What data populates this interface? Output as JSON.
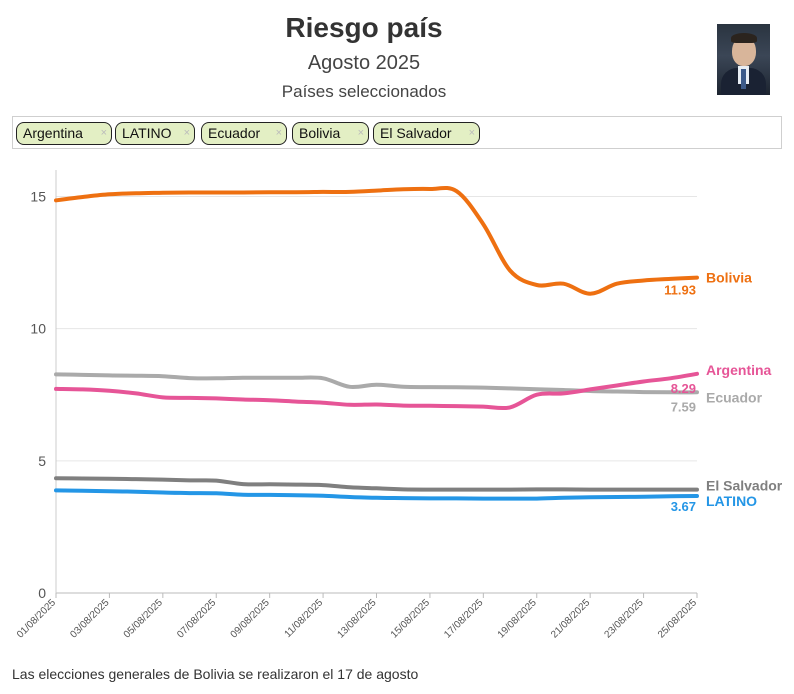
{
  "header": {
    "title": "Riesgo país",
    "subtitle": "Agosto 2025",
    "subsubtitle": "Países seleccionados"
  },
  "filters": {
    "chips": [
      {
        "label": "Argentina",
        "remove": "×"
      },
      {
        "label": "LATINO",
        "remove": "×"
      },
      {
        "label": "Ecuador",
        "remove": "×"
      },
      {
        "label": "Bolivia",
        "remove": "×"
      },
      {
        "label": "El Salvador",
        "remove": "×"
      }
    ]
  },
  "footnote": "Las elecciones generales de Bolivia se realizaron el 17 de agosto",
  "chart_data": {
    "type": "line",
    "title": "Riesgo país",
    "xlabel": "",
    "ylabel": "",
    "ylim": [
      0,
      16
    ],
    "yticks": [
      0,
      5,
      10,
      15
    ],
    "x": [
      1,
      2,
      3,
      4,
      5,
      6,
      7,
      8,
      9,
      10,
      11,
      12,
      13,
      14,
      15,
      16,
      17,
      18,
      19,
      20,
      21,
      22,
      23,
      24,
      25
    ],
    "xticks": [
      1,
      3,
      5,
      7,
      9,
      11,
      13,
      15,
      17,
      19,
      21,
      23,
      25
    ],
    "xtick_labels": [
      "01/08/2025",
      "03/08/2025",
      "05/08/2025",
      "07/08/2025",
      "09/08/2025",
      "11/08/2025",
      "13/08/2025",
      "15/08/2025",
      "17/08/2025",
      "19/08/2025",
      "21/08/2025",
      "23/08/2025",
      "25/08/2025"
    ],
    "grid": true,
    "series": [
      {
        "name": "Bolivia",
        "color": "#ee7011",
        "end_value": "11.93",
        "show_value": true,
        "values": [
          14.85,
          14.98,
          15.08,
          15.12,
          15.14,
          15.15,
          15.15,
          15.15,
          15.16,
          15.16,
          15.17,
          15.17,
          15.22,
          15.27,
          15.28,
          15.2,
          13.95,
          12.2,
          11.65,
          11.7,
          11.32,
          11.7,
          11.82,
          11.88,
          11.93
        ]
      },
      {
        "name": "Ecuador",
        "color": "#aaaaaa",
        "end_value": "7.59",
        "show_value": true,
        "values": [
          8.27,
          8.25,
          8.23,
          8.22,
          8.2,
          8.13,
          8.12,
          8.14,
          8.14,
          8.14,
          8.12,
          7.8,
          7.88,
          7.8,
          7.79,
          7.78,
          7.77,
          7.74,
          7.71,
          7.68,
          7.64,
          7.62,
          7.6,
          7.59,
          7.59
        ]
      },
      {
        "name": "Argentina",
        "color": "#e65597",
        "end_value": "8.29",
        "show_value": true,
        "values": [
          7.72,
          7.7,
          7.65,
          7.55,
          7.4,
          7.38,
          7.36,
          7.32,
          7.29,
          7.24,
          7.2,
          7.12,
          7.13,
          7.09,
          7.08,
          7.07,
          7.05,
          7.02,
          7.5,
          7.55,
          7.7,
          7.85,
          8.0,
          8.12,
          8.29
        ]
      },
      {
        "name": "El Salvador",
        "color": "#7f7f7f",
        "end_value": "",
        "show_value": false,
        "values": [
          4.34,
          4.33,
          4.32,
          4.31,
          4.29,
          4.26,
          4.25,
          4.12,
          4.11,
          4.1,
          4.08,
          4.0,
          3.96,
          3.92,
          3.91,
          3.91,
          3.91,
          3.91,
          3.92,
          3.92,
          3.91,
          3.91,
          3.91,
          3.91,
          3.91
        ]
      },
      {
        "name": "LATINO",
        "color": "#2496e6",
        "end_value": "3.67",
        "show_value": true,
        "values": [
          3.88,
          3.87,
          3.85,
          3.83,
          3.8,
          3.78,
          3.77,
          3.72,
          3.71,
          3.7,
          3.68,
          3.63,
          3.6,
          3.59,
          3.58,
          3.58,
          3.57,
          3.57,
          3.57,
          3.6,
          3.62,
          3.63,
          3.64,
          3.66,
          3.67
        ]
      }
    ]
  }
}
